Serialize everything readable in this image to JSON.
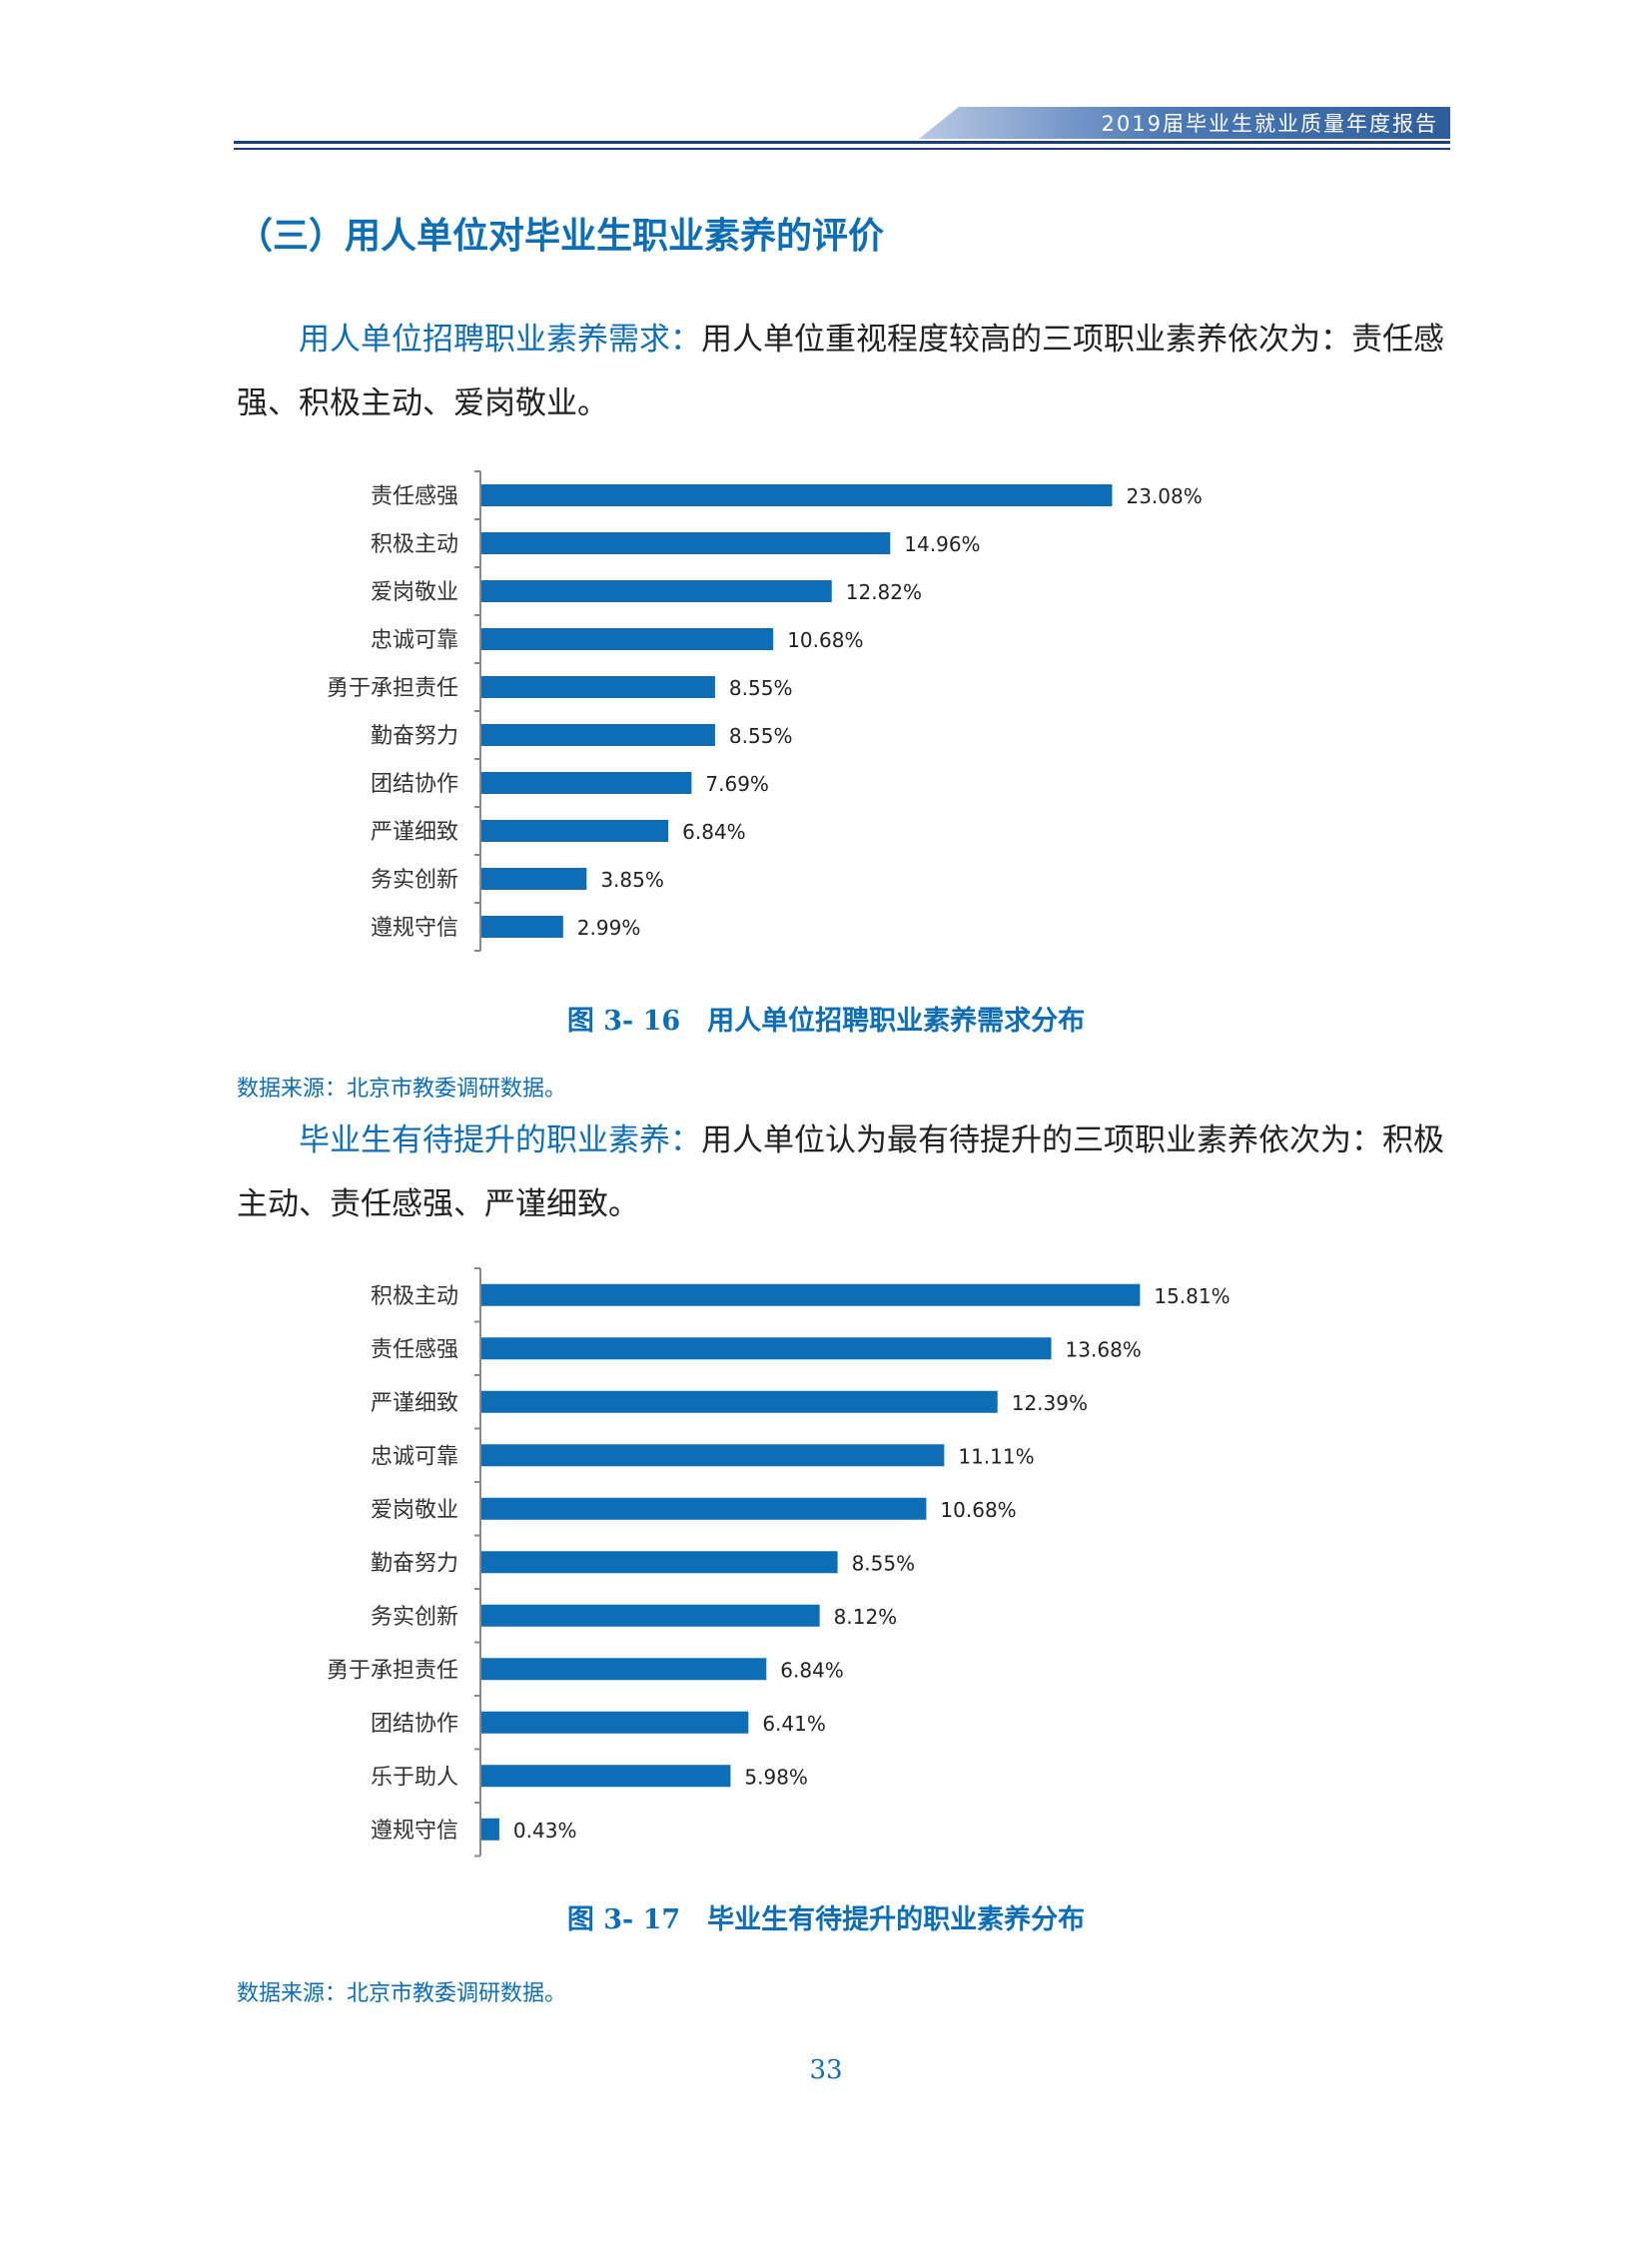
{
  "header": {
    "title": "2019届毕业生就业质量年度报告"
  },
  "section_heading": "（三）用人单位对毕业生职业素养的评价",
  "paragraph_1": {
    "lead_in": "用人单位招聘职业素养需求：",
    "text": "用人单位重视程度较高的三项职业素养依次为：责任感强、积极主动、爱岗敬业。"
  },
  "paragraph_2": {
    "lead_in": "毕业生有待提升的职业素养：",
    "text": "用人单位认为最有待提升的三项职业素养依次为：积极主动、责任感强、严谨细致。"
  },
  "chart_data": [
    {
      "type": "bar",
      "orientation": "horizontal",
      "categories": [
        "责任感强",
        "积极主动",
        "爱岗敬业",
        "忠诚可靠",
        "勇于承担责任",
        "勤奋努力",
        "团结协作",
        "严谨细致",
        "务实创新",
        "遵规守信"
      ],
      "values": [
        23.08,
        14.96,
        12.82,
        10.68,
        8.55,
        8.55,
        7.69,
        6.84,
        3.85,
        2.99
      ],
      "value_labels": [
        "23.08%",
        "14.96%",
        "12.82%",
        "10.68%",
        "8.55%",
        "8.55%",
        "7.69%",
        "6.84%",
        "3.85%",
        "2.99%"
      ],
      "xlim": [
        0,
        25
      ],
      "bar_color": "#0d6db5",
      "caption": "图 3- 16　用人单位招聘职业素养需求分布",
      "source": "数据来源：北京市教委调研数据。"
    },
    {
      "type": "bar",
      "orientation": "horizontal",
      "categories": [
        "积极主动",
        "责任感强",
        "严谨细致",
        "忠诚可靠",
        "爱岗敬业",
        "勤奋努力",
        "务实创新",
        "勇于承担责任",
        "团结协作",
        "乐于助人",
        "遵规守信"
      ],
      "values": [
        15.81,
        13.68,
        12.39,
        11.11,
        10.68,
        8.55,
        8.12,
        6.84,
        6.41,
        5.98,
        0.43
      ],
      "value_labels": [
        "15.81%",
        "13.68%",
        "12.39%",
        "11.11%",
        "10.68%",
        "8.55%",
        "8.12%",
        "6.84%",
        "6.41%",
        "5.98%",
        "0.43%"
      ],
      "xlim": [
        0,
        17
      ],
      "bar_color": "#0d6db5",
      "caption": "图 3- 17　毕业生有待提升的职业素养分布",
      "source": "数据来源：北京市教委调研数据。"
    }
  ],
  "page_number": "33"
}
